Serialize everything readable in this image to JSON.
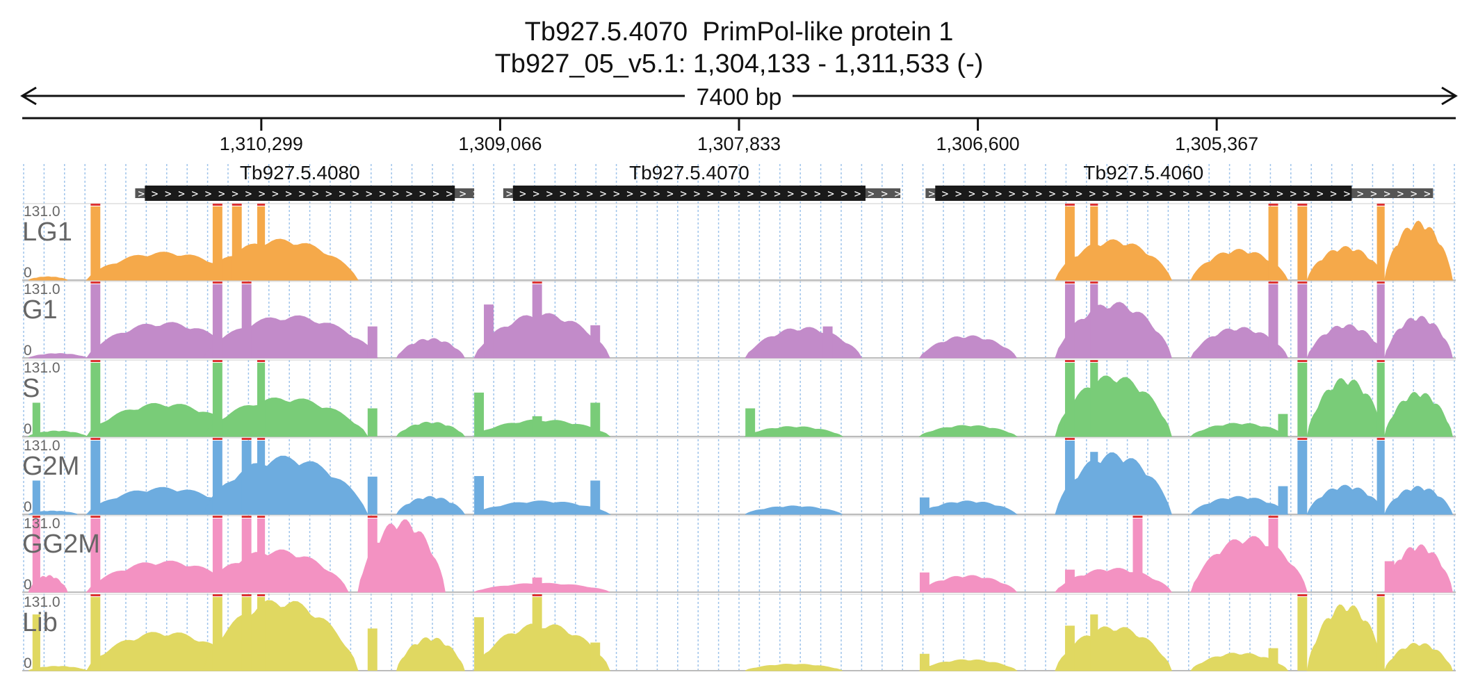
{
  "header": {
    "title": "Tb927.5.4070  PrimPol-like protein 1",
    "location": "Tb927_05_v5.1: 1,304,133 - 1,311,533 (-)",
    "span_label": "7400 bp"
  },
  "chart_data": {
    "type": "area",
    "x_axis": {
      "start": 1311533,
      "end": 1304133,
      "reversed": true,
      "tick_values": [
        1310299,
        1309066,
        1307833,
        1306600,
        1305367
      ],
      "tick_labels": [
        "1,310,299",
        "1,309,066",
        "1,307,833",
        "1,306,600",
        "1,305,367"
      ]
    },
    "genes": [
      {
        "name": "Tb927.5.4080",
        "start": 1310950,
        "cds_start": 1310900,
        "cds_end": 1309300,
        "end": 1309200
      },
      {
        "name": "Tb927.5.4070",
        "start": 1309050,
        "cds_start": 1309000,
        "cds_end": 1307180,
        "end": 1307000
      },
      {
        "name": "Tb927.5.4060",
        "start": 1306870,
        "cds_start": 1306820,
        "cds_end": 1304670,
        "end": 1304250
      }
    ],
    "y_max": 131.0,
    "y_max_label": "131.0",
    "y_min_label": "0",
    "grid": true,
    "tracks": [
      {
        "name": "LG1",
        "color": "#f5a94a",
        "peaks": [
          [
            1311500,
            1311300,
            6
          ],
          [
            1311200,
            1310400,
            50
          ],
          [
            1310600,
            1309800,
            73
          ],
          [
            1306200,
            1305600,
            72
          ],
          [
            1305500,
            1305000,
            55
          ],
          [
            1304900,
            1304500,
            60
          ],
          [
            1304500,
            1304150,
            105
          ]
        ],
        "spikes": [
          [
            1311180,
            1311130,
            131
          ],
          [
            1310550,
            1310500,
            131
          ],
          [
            1310450,
            1310400,
            131
          ],
          [
            1310320,
            1310280,
            131
          ],
          [
            1306150,
            1306100,
            131
          ],
          [
            1306020,
            1305980,
            131
          ],
          [
            1305100,
            1305050,
            131
          ],
          [
            1304950,
            1304900,
            131
          ],
          [
            1304540,
            1304500,
            131
          ]
        ]
      },
      {
        "name": "G1",
        "color": "#c28bc9",
        "peaks": [
          [
            1311500,
            1311200,
            8
          ],
          [
            1311200,
            1310400,
            64
          ],
          [
            1310600,
            1309700,
            76
          ],
          [
            1309600,
            1309250,
            35
          ],
          [
            1309200,
            1308500,
            80
          ],
          [
            1307800,
            1307200,
            55
          ],
          [
            1306900,
            1306400,
            40
          ],
          [
            1306200,
            1305600,
            100
          ],
          [
            1305500,
            1305000,
            55
          ],
          [
            1304900,
            1304500,
            60
          ],
          [
            1304500,
            1304150,
            75
          ]
        ],
        "spikes": [
          [
            1311180,
            1311130,
            131
          ],
          [
            1310550,
            1310500,
            131
          ],
          [
            1310400,
            1310350,
            131
          ],
          [
            1309750,
            1309700,
            56
          ],
          [
            1309150,
            1309100,
            95
          ],
          [
            1308900,
            1308850,
            131
          ],
          [
            1308600,
            1308550,
            58
          ],
          [
            1307400,
            1307350,
            56
          ],
          [
            1306150,
            1306100,
            131
          ],
          [
            1306020,
            1305980,
            131
          ],
          [
            1305100,
            1305050,
            131
          ],
          [
            1304950,
            1304900,
            131
          ],
          [
            1304540,
            1304500,
            131
          ]
        ]
      },
      {
        "name": "S",
        "color": "#79cc78",
        "peaks": [
          [
            1311500,
            1311200,
            10
          ],
          [
            1311200,
            1310400,
            60
          ],
          [
            1310600,
            1309750,
            70
          ],
          [
            1309600,
            1309250,
            26
          ],
          [
            1309200,
            1308500,
            30
          ],
          [
            1307800,
            1307300,
            18
          ],
          [
            1306900,
            1306400,
            20
          ],
          [
            1306200,
            1305600,
            110
          ],
          [
            1305500,
            1305000,
            24
          ],
          [
            1304900,
            1304500,
            105
          ],
          [
            1304500,
            1304150,
            80
          ]
        ],
        "spikes": [
          [
            1311480,
            1311440,
            60
          ],
          [
            1311180,
            1311130,
            131
          ],
          [
            1310550,
            1310500,
            131
          ],
          [
            1310320,
            1310280,
            131
          ],
          [
            1309750,
            1309700,
            50
          ],
          [
            1309200,
            1309150,
            78
          ],
          [
            1308900,
            1308850,
            36
          ],
          [
            1308600,
            1308550,
            60
          ],
          [
            1307800,
            1307750,
            50
          ],
          [
            1306150,
            1306100,
            131
          ],
          [
            1306020,
            1305980,
            131
          ],
          [
            1305050,
            1305000,
            40
          ],
          [
            1304950,
            1304900,
            131
          ],
          [
            1304540,
            1304500,
            131
          ]
        ]
      },
      {
        "name": "G2M",
        "color": "#6dacdf",
        "peaks": [
          [
            1311500,
            1311250,
            6
          ],
          [
            1311200,
            1310400,
            48
          ],
          [
            1310600,
            1309750,
            104
          ],
          [
            1309600,
            1309250,
            32
          ],
          [
            1309200,
            1308500,
            24
          ],
          [
            1307800,
            1307300,
            15
          ],
          [
            1306900,
            1306400,
            24
          ],
          [
            1306200,
            1305600,
            110
          ],
          [
            1305500,
            1305000,
            32
          ],
          [
            1304900,
            1304500,
            52
          ],
          [
            1304500,
            1304150,
            50
          ]
        ],
        "spikes": [
          [
            1311480,
            1311440,
            60
          ],
          [
            1311180,
            1311130,
            131
          ],
          [
            1310550,
            1310500,
            131
          ],
          [
            1310400,
            1310350,
            131
          ],
          [
            1310320,
            1310280,
            131
          ],
          [
            1309750,
            1309700,
            67
          ],
          [
            1309200,
            1309150,
            68
          ],
          [
            1308600,
            1308550,
            60
          ],
          [
            1306900,
            1306850,
            30
          ],
          [
            1306150,
            1306100,
            131
          ],
          [
            1306020,
            1305980,
            111
          ],
          [
            1305050,
            1305000,
            50
          ],
          [
            1304950,
            1304900,
            131
          ],
          [
            1304540,
            1304500,
            131
          ]
        ]
      },
      {
        "name": "GG2M",
        "color": "#f392c2",
        "peaks": [
          [
            1311500,
            1311300,
            30
          ],
          [
            1311200,
            1310400,
            56
          ],
          [
            1310600,
            1309850,
            76
          ],
          [
            1309800,
            1309350,
            130
          ],
          [
            1309200,
            1308500,
            16
          ],
          [
            1306900,
            1306400,
            30
          ],
          [
            1306200,
            1305600,
            43
          ],
          [
            1305500,
            1304900,
            100
          ],
          [
            1304500,
            1304150,
            85
          ]
        ],
        "spikes": [
          [
            1311480,
            1311440,
            131
          ],
          [
            1311180,
            1311130,
            131
          ],
          [
            1310550,
            1310500,
            131
          ],
          [
            1310400,
            1310350,
            131
          ],
          [
            1310320,
            1310280,
            131
          ],
          [
            1309750,
            1309700,
            131
          ],
          [
            1308900,
            1308850,
            26
          ],
          [
            1306900,
            1306850,
            35
          ],
          [
            1306150,
            1306100,
            40
          ],
          [
            1305800,
            1305750,
            131
          ],
          [
            1305100,
            1305050,
            131
          ],
          [
            1304500,
            1304450,
            55
          ]
        ]
      },
      {
        "name": "Lib",
        "color": "#e0d861",
        "peaks": [
          [
            1311500,
            1311200,
            8
          ],
          [
            1311200,
            1310400,
            70
          ],
          [
            1310600,
            1309800,
            128
          ],
          [
            1309600,
            1309250,
            60
          ],
          [
            1309200,
            1308500,
            85
          ],
          [
            1307800,
            1307300,
            12
          ],
          [
            1306900,
            1306400,
            20
          ],
          [
            1306200,
            1305600,
            80
          ],
          [
            1305500,
            1305000,
            32
          ],
          [
            1304900,
            1304500,
            120
          ],
          [
            1304500,
            1304150,
            50
          ]
        ],
        "spikes": [
          [
            1311480,
            1311440,
            100
          ],
          [
            1311180,
            1311130,
            131
          ],
          [
            1310550,
            1310500,
            131
          ],
          [
            1310400,
            1310350,
            131
          ],
          [
            1310320,
            1310280,
            131
          ],
          [
            1309750,
            1309700,
            75
          ],
          [
            1309200,
            1309150,
            95
          ],
          [
            1308900,
            1308850,
            131
          ],
          [
            1308600,
            1308550,
            50
          ],
          [
            1306900,
            1306850,
            30
          ],
          [
            1306150,
            1306100,
            80
          ],
          [
            1306020,
            1305980,
            100
          ],
          [
            1305100,
            1305050,
            40
          ],
          [
            1304950,
            1304900,
            131
          ],
          [
            1304540,
            1304500,
            131
          ]
        ]
      }
    ]
  }
}
